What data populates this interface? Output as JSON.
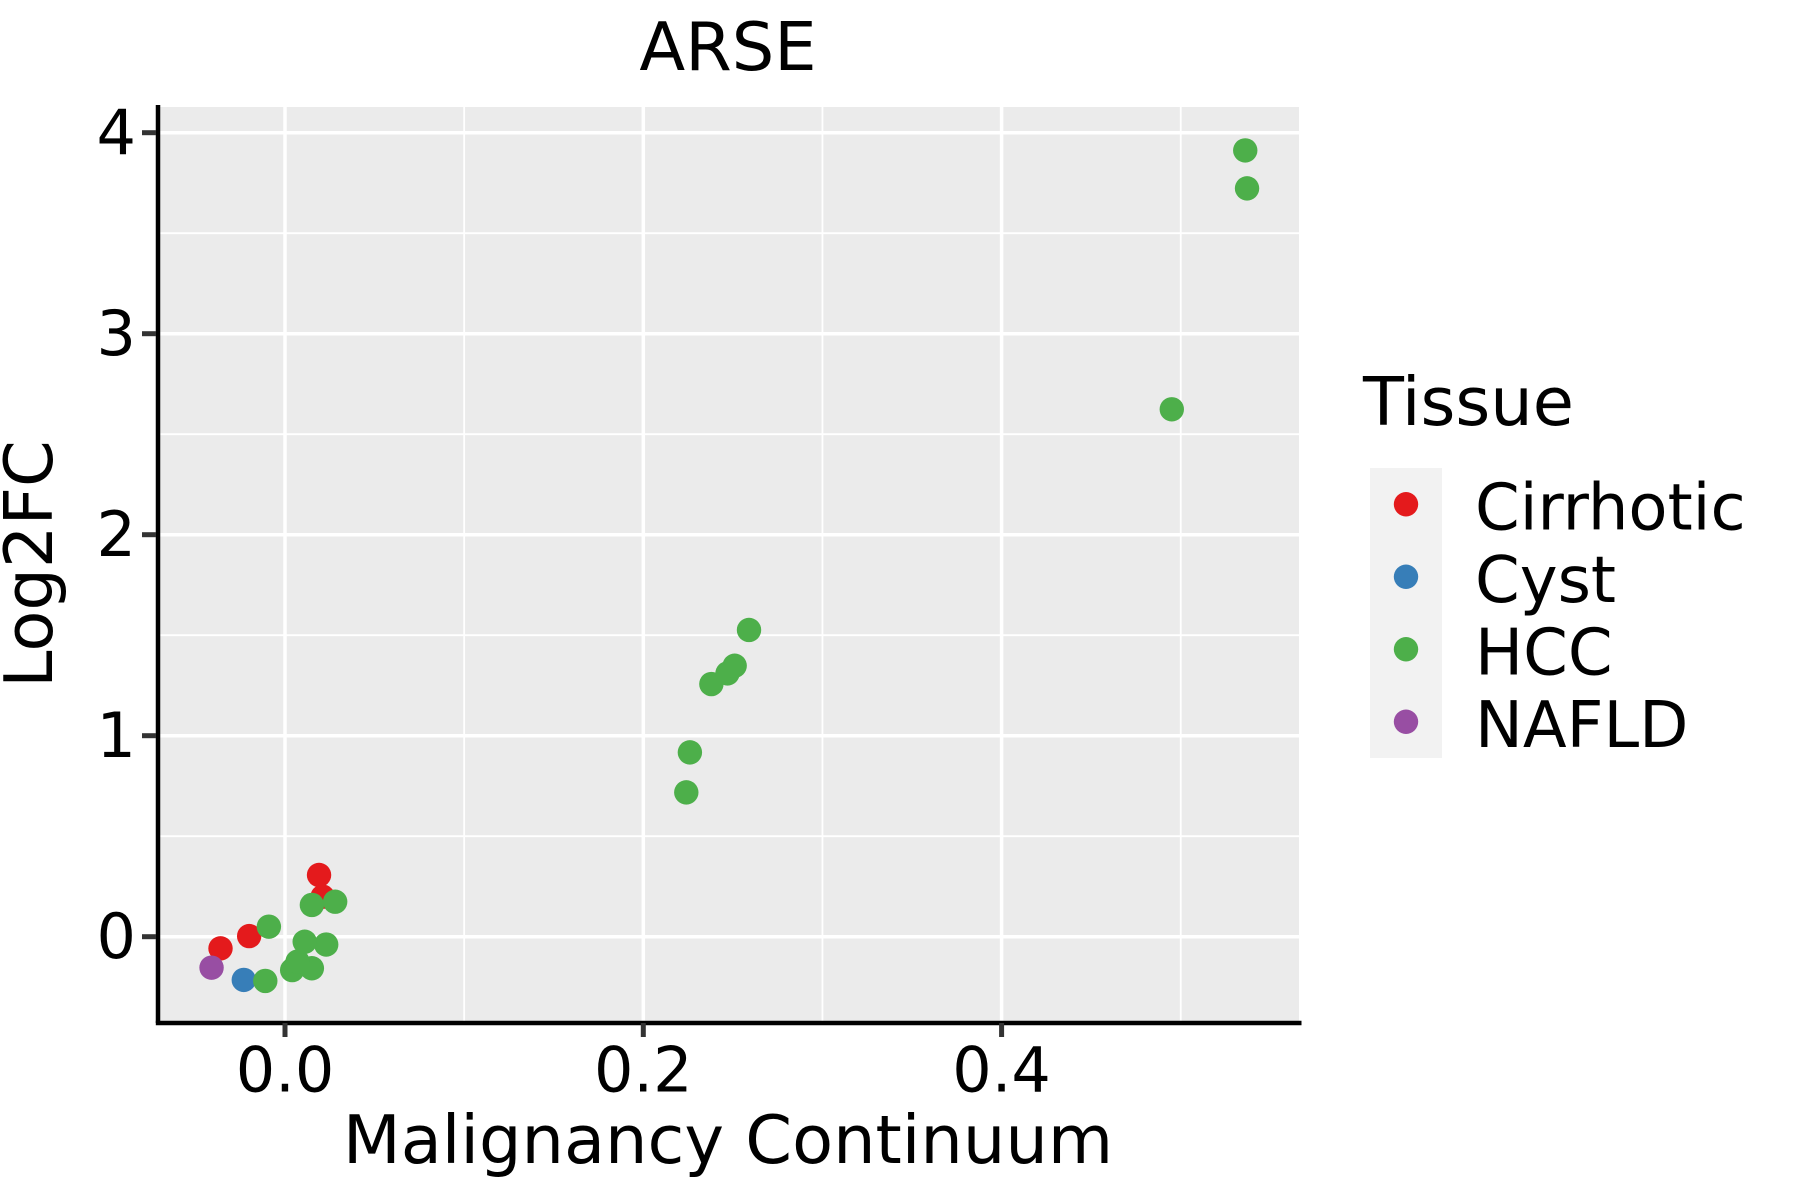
{
  "title": "ARSE",
  "x_axis": {
    "label": "Malignancy Continuum",
    "tick_labels": [
      "0.0",
      "0.2",
      "0.4"
    ],
    "tick_values": [
      0.0,
      0.2,
      0.4
    ],
    "minor_values": [
      0.1,
      0.3,
      0.5
    ]
  },
  "y_axis": {
    "label": "Log2FC",
    "tick_labels": [
      "0",
      "1",
      "2",
      "3",
      "4"
    ],
    "tick_values": [
      0,
      1,
      2,
      3,
      4
    ],
    "minor_values": [
      0.5,
      1.5,
      2.5,
      3.5
    ]
  },
  "legend": {
    "title": "Tissue",
    "items": [
      {
        "label": "Cirrhotic",
        "color": "#E41A1C"
      },
      {
        "label": "Cyst",
        "color": "#377EB8"
      },
      {
        "label": "HCC",
        "color": "#4DAF4A"
      },
      {
        "label": "NAFLD",
        "color": "#984EA3"
      }
    ]
  },
  "colors": {
    "panel_background": "#EBEBEB",
    "gridline": "#FFFFFF",
    "legend_key_background": "#F2F2F2",
    "axis_line": "#000000",
    "tick_mark": "#333333"
  },
  "chart_data": {
    "type": "scatter",
    "title": "ARSE",
    "xlabel": "Malignancy Continuum",
    "ylabel": "Log2FC",
    "xlim": [
      -0.071,
      0.566
    ],
    "ylim": [
      -0.42,
      4.13
    ],
    "grid": "on",
    "legend_title": "Tissue",
    "legend_position": "right",
    "draw_order": [
      0,
      1,
      3,
      2
    ],
    "series": [
      {
        "name": "Cirrhotic",
        "color": "#E41A1C",
        "points": [
          [
            -0.036,
            -0.058
          ],
          [
            -0.02,
            0.003
          ],
          [
            0.021,
            0.199
          ],
          [
            0.019,
            0.307
          ]
        ]
      },
      {
        "name": "Cyst",
        "color": "#377EB8",
        "points": [
          [
            -0.023,
            -0.215
          ]
        ]
      },
      {
        "name": "HCC",
        "color": "#4DAF4A",
        "points": [
          [
            -0.011,
            -0.22
          ],
          [
            0.004,
            -0.166
          ],
          [
            0.015,
            -0.157
          ],
          [
            0.007,
            -0.124
          ],
          [
            0.023,
            -0.039
          ],
          [
            0.011,
            -0.025
          ],
          [
            -0.009,
            0.05
          ],
          [
            0.015,
            0.158
          ],
          [
            0.028,
            0.174
          ],
          [
            0.224,
            0.718
          ],
          [
            0.226,
            0.917
          ],
          [
            0.238,
            1.257
          ],
          [
            0.247,
            1.31
          ],
          [
            0.251,
            1.348
          ],
          [
            0.259,
            1.526
          ],
          [
            0.495,
            2.624
          ],
          [
            0.537,
            3.723
          ],
          [
            0.536,
            3.912
          ]
        ]
      },
      {
        "name": "NAFLD",
        "color": "#984EA3",
        "points": [
          [
            -0.041,
            -0.154
          ]
        ]
      }
    ]
  }
}
